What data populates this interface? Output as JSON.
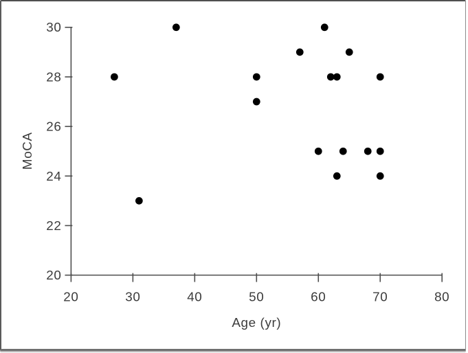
{
  "chart_data": {
    "type": "scatter",
    "title": "",
    "xlabel": "Age (yr)",
    "ylabel": "MoCA",
    "xlim": [
      20,
      80
    ],
    "ylim": [
      20,
      30
    ],
    "xticks": [
      20,
      30,
      40,
      50,
      60,
      70,
      80
    ],
    "yticks": [
      20,
      22,
      24,
      26,
      28,
      30
    ],
    "grid": false,
    "legend": null,
    "marker": {
      "shape": "circle",
      "color": "#000000"
    },
    "axis_color": "#4d4d4d",
    "text_color": "#3c3c3c",
    "points": [
      {
        "x": 27,
        "y": 28
      },
      {
        "x": 31,
        "y": 23
      },
      {
        "x": 37,
        "y": 30
      },
      {
        "x": 50,
        "y": 27
      },
      {
        "x": 50,
        "y": 28
      },
      {
        "x": 57,
        "y": 29
      },
      {
        "x": 60,
        "y": 25
      },
      {
        "x": 61,
        "y": 30
      },
      {
        "x": 62,
        "y": 28
      },
      {
        "x": 63,
        "y": 24
      },
      {
        "x": 63,
        "y": 28
      },
      {
        "x": 64,
        "y": 25
      },
      {
        "x": 65,
        "y": 29
      },
      {
        "x": 68,
        "y": 25
      },
      {
        "x": 70,
        "y": 24
      },
      {
        "x": 70,
        "y": 25
      },
      {
        "x": 70,
        "y": 28
      }
    ]
  }
}
